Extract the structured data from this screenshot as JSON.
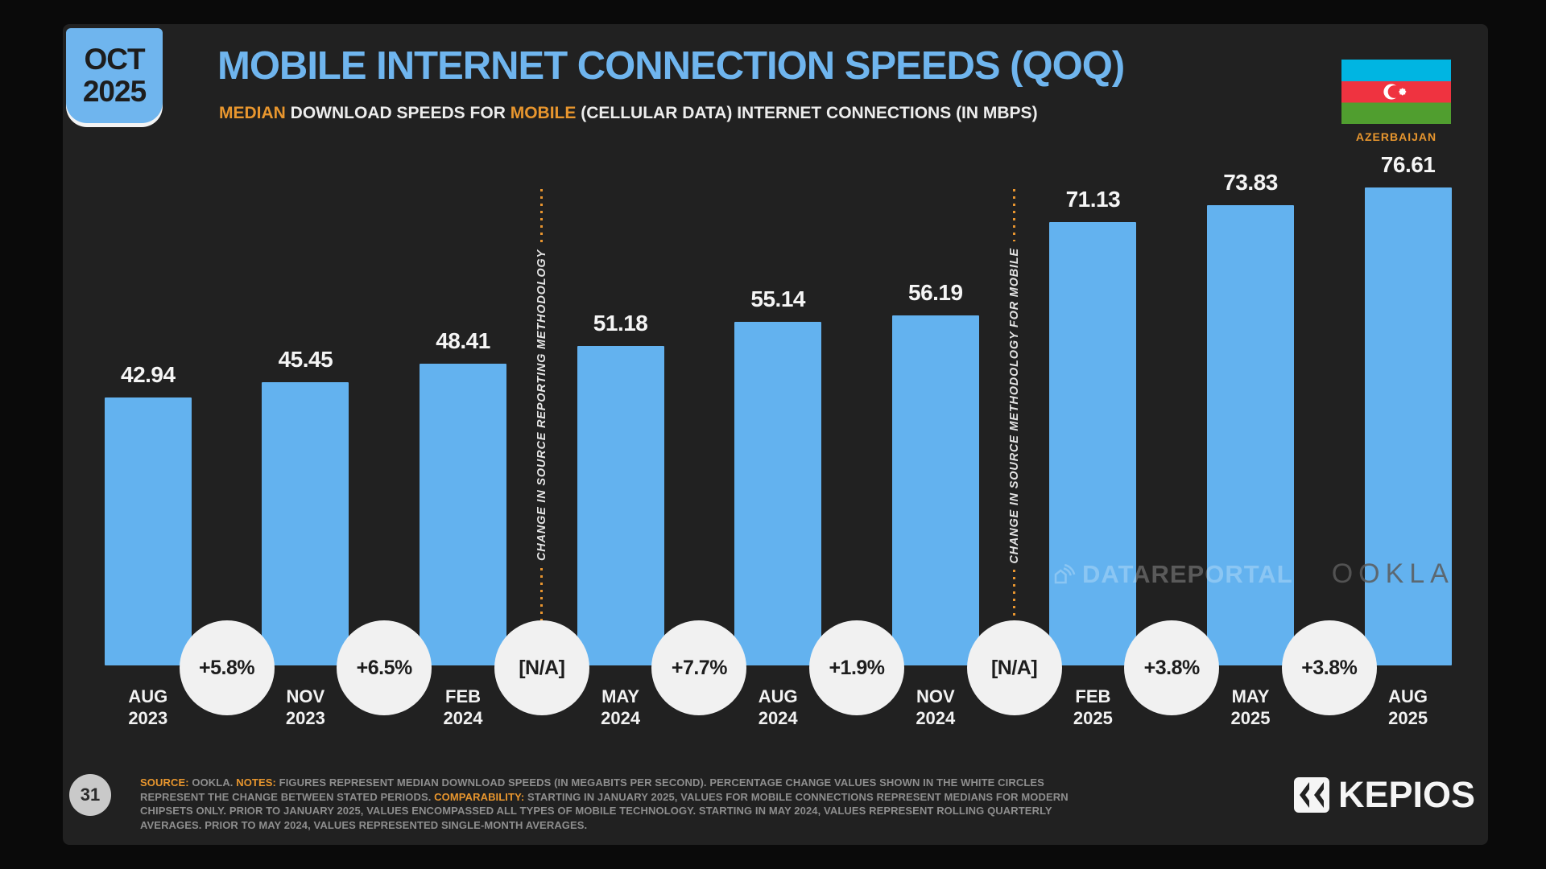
{
  "slide": {
    "badge": {
      "month": "OCT",
      "year": "2025"
    },
    "title": "MOBILE INTERNET CONNECTION SPEEDS (QOQ)",
    "subtitle_segments": [
      {
        "text": "MEDIAN",
        "highlight": true
      },
      {
        "text": " DOWNLOAD SPEEDS FOR ",
        "highlight": false
      },
      {
        "text": "MOBILE",
        "highlight": true
      },
      {
        "text": " (CELLULAR DATA) INTERNET CONNECTIONS (IN MBPS)",
        "highlight": false
      }
    ],
    "country": "AZERBAIJAN",
    "page_number": "31",
    "watermark": {
      "left": "DATAREPORTAL",
      "right": "OOKLA"
    },
    "brand": "KEPIOS",
    "notes_segments": [
      {
        "text": "SOURCE:",
        "highlight": true
      },
      {
        "text": " OOKLA. ",
        "highlight": false
      },
      {
        "text": "NOTES:",
        "highlight": true
      },
      {
        "text": " FIGURES REPRESENT MEDIAN DOWNLOAD SPEEDS (IN MEGABITS PER SECOND). PERCENTAGE CHANGE VALUES SHOWN IN THE WHITE CIRCLES REPRESENT THE CHANGE BETWEEN STATED PERIODS. ",
        "highlight": false
      },
      {
        "text": "COMPARABILITY:",
        "highlight": true
      },
      {
        "text": " STARTING IN JANUARY 2025, VALUES FOR MOBILE CONNECTIONS REPRESENT MEDIANS FOR MODERN CHIPSETS ONLY. PRIOR TO JANUARY 2025, VALUES ENCOMPASSED ALL TYPES OF MOBILE TECHNOLOGY. STARTING IN MAY 2024, VALUES REPRESENT ROLLING QUARTERLY AVERAGES. PRIOR TO MAY 2024, VALUES REPRESENTED SINGLE-MONTH AVERAGES.",
        "highlight": false
      }
    ]
  },
  "chart_data": {
    "type": "bar",
    "title": "MOBILE INTERNET CONNECTION SPEEDS (QOQ)",
    "subtitle": "MEDIAN DOWNLOAD SPEEDS FOR MOBILE (CELLULAR DATA) INTERNET CONNECTIONS (IN MBPS)",
    "country": "AZERBAIJAN",
    "categories": [
      "AUG 2023",
      "NOV 2023",
      "FEB 2024",
      "MAY 2024",
      "AUG 2024",
      "NOV 2024",
      "FEB 2025",
      "MAY 2025",
      "AUG 2025"
    ],
    "values": [
      42.94,
      45.45,
      48.41,
      51.18,
      55.14,
      56.19,
      71.13,
      73.83,
      76.61
    ],
    "unit": "MBPS",
    "qoq_changes": [
      "+5.8%",
      "+6.5%",
      "[N/A]",
      "+7.7%",
      "+1.9%",
      "[N/A]",
      "+3.8%",
      "+3.8%"
    ],
    "annotations": [
      {
        "after_category_index": 2,
        "text": "CHANGE IN SOURCE REPORTING METHODOLOGY"
      },
      {
        "after_category_index": 5,
        "text": "CHANGE IN SOURCE METHODOLOGY FOR MOBILE"
      }
    ],
    "ylim": [
      0,
      80
    ],
    "grid": false,
    "legend": false,
    "bar_color": "#63B2EF",
    "accent_orange": "#E8962E",
    "circle_color": "#F1F1F1"
  }
}
